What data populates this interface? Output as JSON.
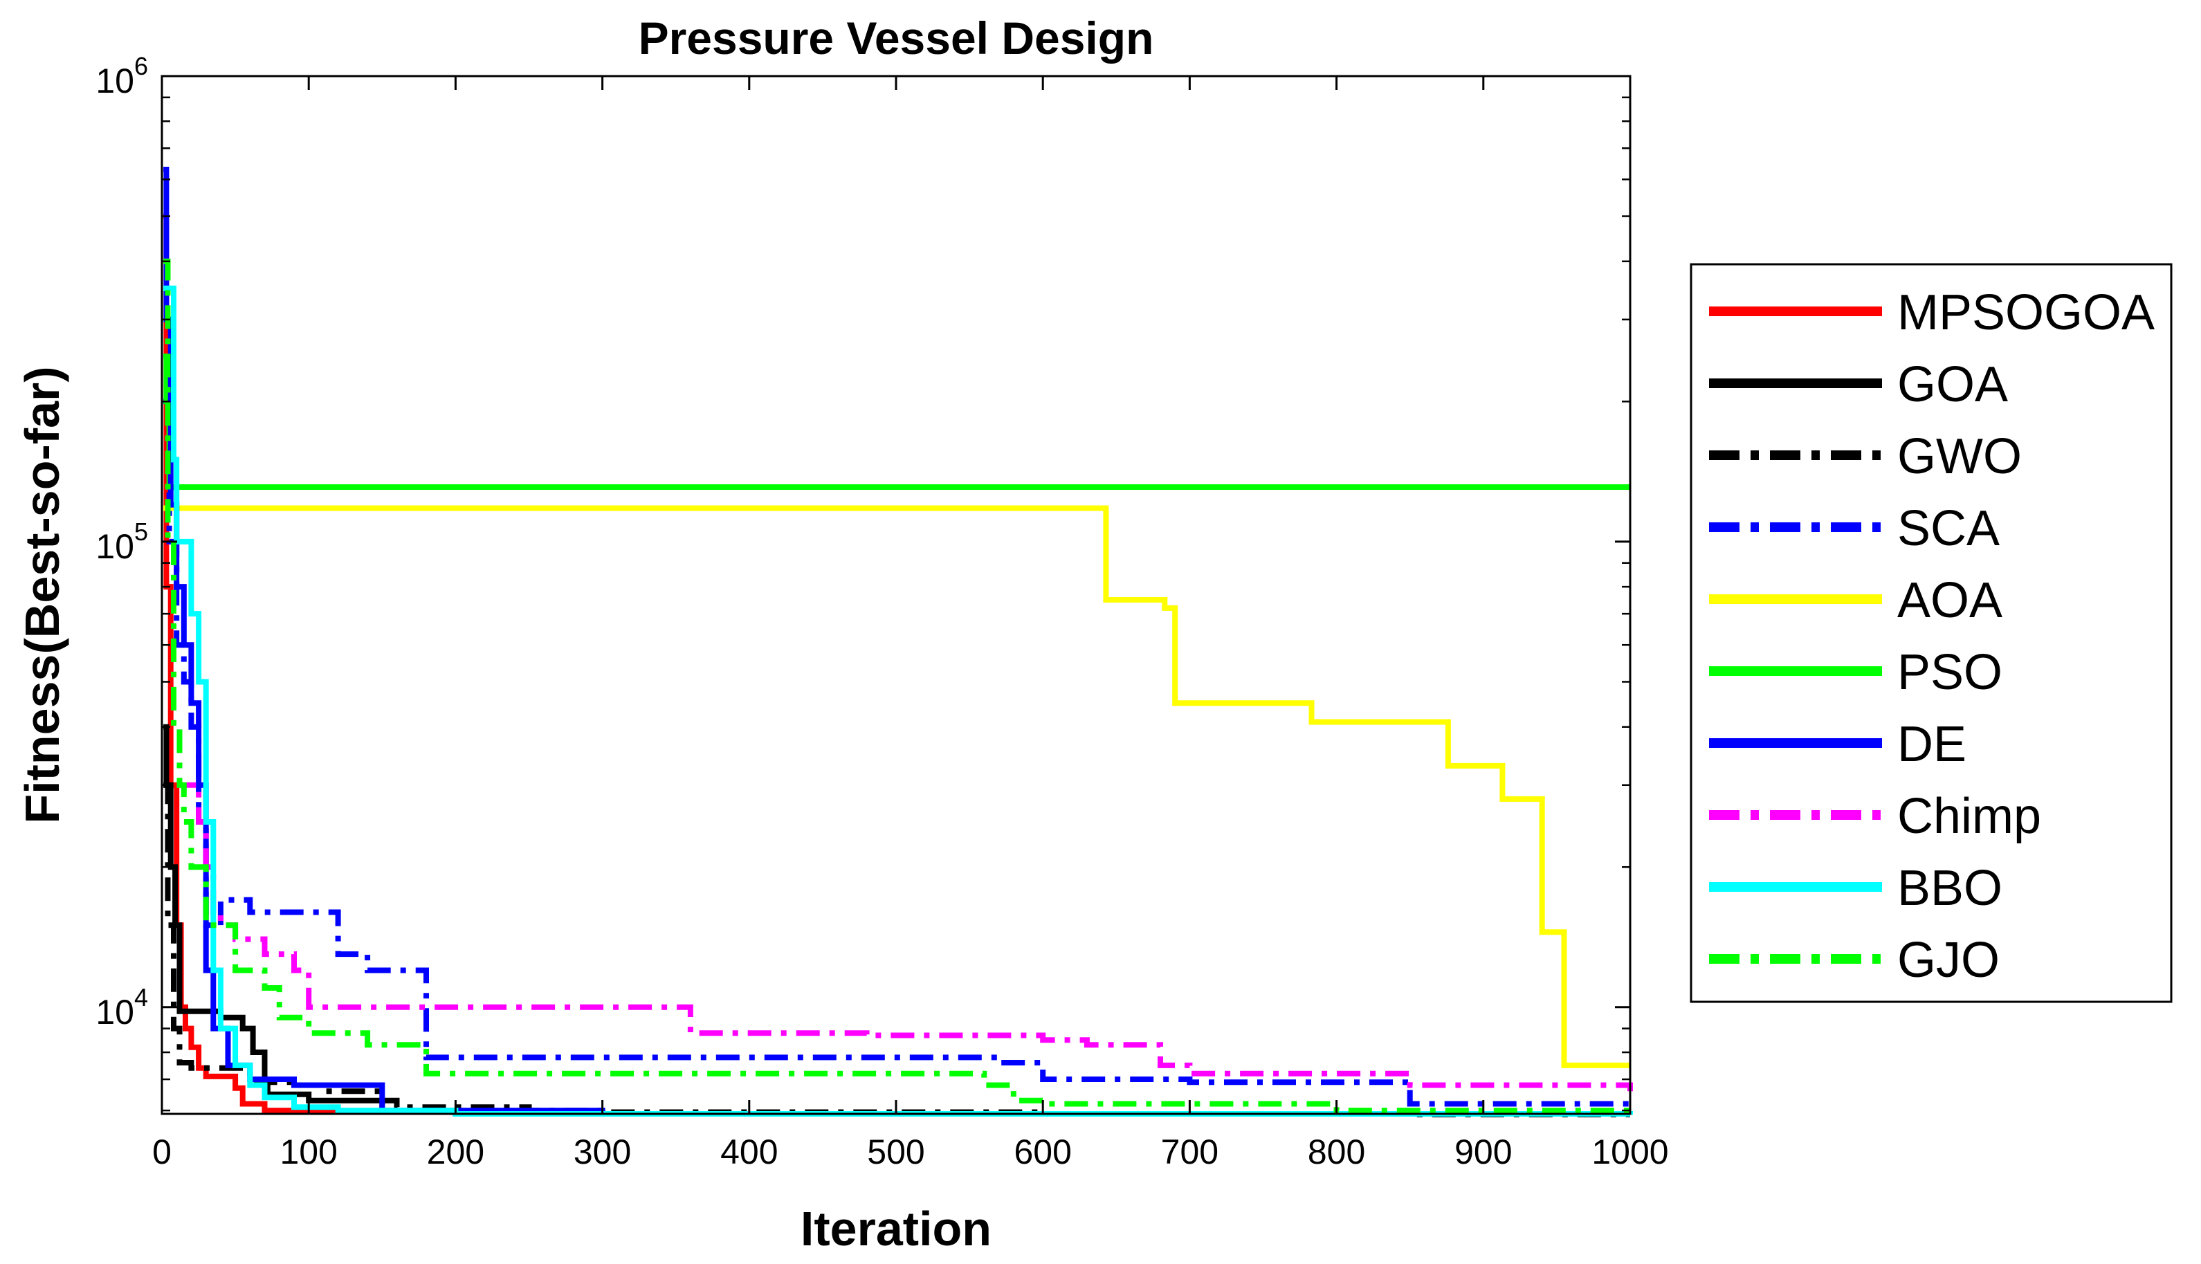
{
  "chart_data": {
    "type": "line",
    "title": "Pressure Vessel Design",
    "xlabel": "Iteration",
    "ylabel": "Fitness(Best-so-far)",
    "xlim": [
      0,
      1000
    ],
    "ylim": [
      5900,
      1000000
    ],
    "yscale": "log",
    "grid": false,
    "legend_position": "outside-right",
    "x_ticks": [
      0,
      100,
      200,
      300,
      400,
      500,
      600,
      700,
      800,
      900,
      1000
    ],
    "x_tick_labels": [
      "0",
      "100",
      "200",
      "300",
      "400",
      "500",
      "600",
      "700",
      "800",
      "900",
      "1000"
    ],
    "y_ticks": [
      {
        "value": 10000,
        "base": "10",
        "exp": "4"
      },
      {
        "value": 100000,
        "base": "10",
        "exp": "5"
      },
      {
        "value": 1000000,
        "base": "10",
        "exp": "6"
      }
    ],
    "series": [
      {
        "name": "MPSOGOA",
        "color": "#ff0000",
        "style": "solid",
        "x": [
          1,
          3,
          6,
          10,
          13,
          16,
          20,
          25,
          30,
          50,
          55,
          70,
          100,
          200,
          1000
        ],
        "y": [
          500000,
          80000,
          30000,
          15000,
          10000,
          9000,
          8200,
          7400,
          7100,
          6700,
          6200,
          6000,
          5950,
          5900,
          5880
        ]
      },
      {
        "name": "GOA",
        "color": "#000000",
        "style": "solid",
        "x": [
          1,
          3,
          6,
          9,
          12,
          40,
          55,
          62,
          70,
          72,
          100,
          150,
          200,
          1000
        ],
        "y": [
          40000,
          30000,
          20000,
          15000,
          9800,
          9500,
          9000,
          8000,
          7000,
          6500,
          6300,
          6000,
          5900,
          5880
        ]
      },
      {
        "name": "GWO",
        "color": "#000000",
        "style": "dashdot",
        "x": [
          1,
          4,
          8,
          12,
          20,
          60,
          90,
          110,
          150,
          160,
          250,
          300,
          600,
          850,
          1000
        ],
        "y": [
          30000,
          15000,
          9000,
          7600,
          7400,
          6900,
          6800,
          6600,
          6300,
          6100,
          6000,
          5950,
          5900,
          5880,
          5870
        ]
      },
      {
        "name": "SCA",
        "color": "#0000ff",
        "style": "dashdot",
        "x": [
          1,
          5,
          10,
          15,
          20,
          25,
          30,
          40,
          50,
          60,
          120,
          140,
          180,
          400,
          570,
          600,
          700,
          850,
          900,
          1000
        ],
        "y": [
          200000,
          100000,
          60000,
          50000,
          40000,
          25000,
          15000,
          17000,
          17000,
          16000,
          13000,
          12000,
          7800,
          7800,
          7600,
          7000,
          6900,
          6200,
          6200,
          6200
        ]
      },
      {
        "name": "AOA",
        "color": "#ffff00",
        "style": "solid",
        "x": [
          1,
          640,
          643,
          677,
          683,
          687,
          690,
          780,
          783,
          873,
          876,
          910,
          913,
          937,
          940,
          952,
          955,
          1000
        ],
        "y": [
          118000,
          118000,
          75000,
          75000,
          72000,
          72000,
          45000,
          45000,
          41000,
          41000,
          33000,
          33000,
          28000,
          28000,
          14500,
          14500,
          7500,
          7500
        ]
      },
      {
        "name": "PSO",
        "color": "#00ff00",
        "style": "solid",
        "x": [
          1,
          3,
          5,
          1000
        ],
        "y": [
          250000,
          200000,
          131000,
          131000
        ]
      },
      {
        "name": "DE",
        "color": "#0000ff",
        "style": "solid",
        "x": [
          1,
          3,
          6,
          10,
          15,
          20,
          25,
          30,
          35,
          45,
          60,
          90,
          150,
          300,
          1000
        ],
        "y": [
          630000,
          300000,
          120000,
          80000,
          60000,
          45000,
          30000,
          12000,
          9000,
          7500,
          7000,
          6800,
          6000,
          5900,
          5870
        ]
      },
      {
        "name": "Chimp",
        "color": "#ff00ff",
        "style": "dashdot",
        "x": [
          1,
          4,
          8,
          12,
          20,
          25,
          30,
          35,
          40,
          50,
          60,
          70,
          90,
          100,
          130,
          340,
          360,
          480,
          600,
          630,
          680,
          700,
          850,
          1000
        ],
        "y": [
          400000,
          100000,
          40000,
          30000,
          30000,
          25000,
          20000,
          16000,
          15000,
          14000,
          14000,
          13000,
          12000,
          10000,
          10000,
          10000,
          8800,
          8700,
          8500,
          8300,
          7500,
          7200,
          6800,
          6600
        ]
      },
      {
        "name": "BBO",
        "color": "#00ffff",
        "style": "solid",
        "x": [
          1,
          8,
          10,
          15,
          20,
          25,
          30,
          35,
          40,
          50,
          60,
          70,
          90,
          120,
          200,
          1000
        ],
        "y": [
          350000,
          150000,
          100000,
          100000,
          70000,
          50000,
          25000,
          12000,
          9000,
          7500,
          6800,
          6400,
          6100,
          6000,
          5900,
          5870
        ]
      },
      {
        "name": "GJO",
        "color": "#00ff00",
        "style": "dashdot",
        "x": [
          1,
          4,
          8,
          12,
          15,
          20,
          30,
          50,
          70,
          80,
          100,
          140,
          180,
          460,
          560,
          580,
          600,
          800,
          1000
        ],
        "y": [
          400000,
          100000,
          40000,
          30000,
          25000,
          20000,
          15000,
          12000,
          11000,
          9500,
          8800,
          8300,
          7200,
          7200,
          6800,
          6300,
          6200,
          6000,
          5900
        ]
      }
    ]
  }
}
